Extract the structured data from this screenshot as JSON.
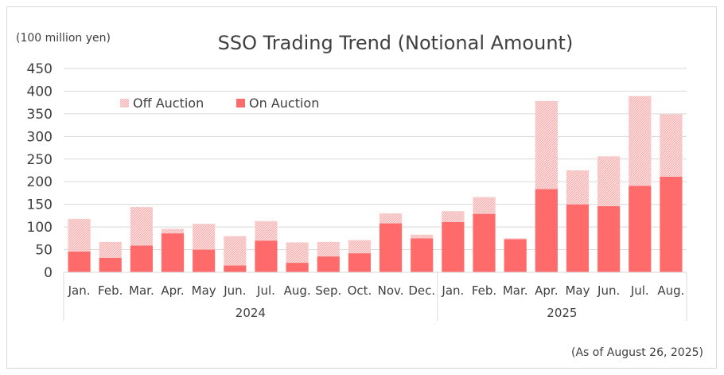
{
  "chart_data": {
    "type": "bar",
    "stacked": true,
    "title": "SSO Trading Trend (Notional Amount)",
    "unit_label": "(100 million yen)",
    "footnote": "(As of August 26, 2025)",
    "ylim": [
      0,
      450
    ],
    "yticks": [
      0,
      50,
      100,
      150,
      200,
      250,
      300,
      350,
      400,
      450
    ],
    "grid": true,
    "legend_position": "top-left",
    "categories": [
      "Jan.",
      "Feb.",
      "Mar.",
      "Apr.",
      "May",
      "Jun.",
      "Jul.",
      "Aug.",
      "Sep.",
      "Oct.",
      "Nov.",
      "Dec.",
      "Jan.",
      "Feb.",
      "Mar.",
      "Apr.",
      "May",
      "Jun.",
      "Jul.",
      "Aug."
    ],
    "year_groups": [
      {
        "label": "2024",
        "start": 0,
        "end": 11
      },
      {
        "label": "2025",
        "start": 12,
        "end": 19
      }
    ],
    "series": [
      {
        "name": "On Auction",
        "color": "#ff6b6b",
        "values": [
          46,
          32,
          59,
          86,
          50,
          15,
          70,
          21,
          35,
          42,
          108,
          75,
          111,
          129,
          73,
          184,
          150,
          146,
          191,
          211
        ]
      },
      {
        "name": "Off Auction",
        "color": "#ffbcbc",
        "values": [
          72,
          35,
          85,
          10,
          57,
          65,
          43,
          45,
          32,
          29,
          22,
          8,
          24,
          37,
          2,
          194,
          75,
          110,
          198,
          138
        ]
      }
    ]
  }
}
